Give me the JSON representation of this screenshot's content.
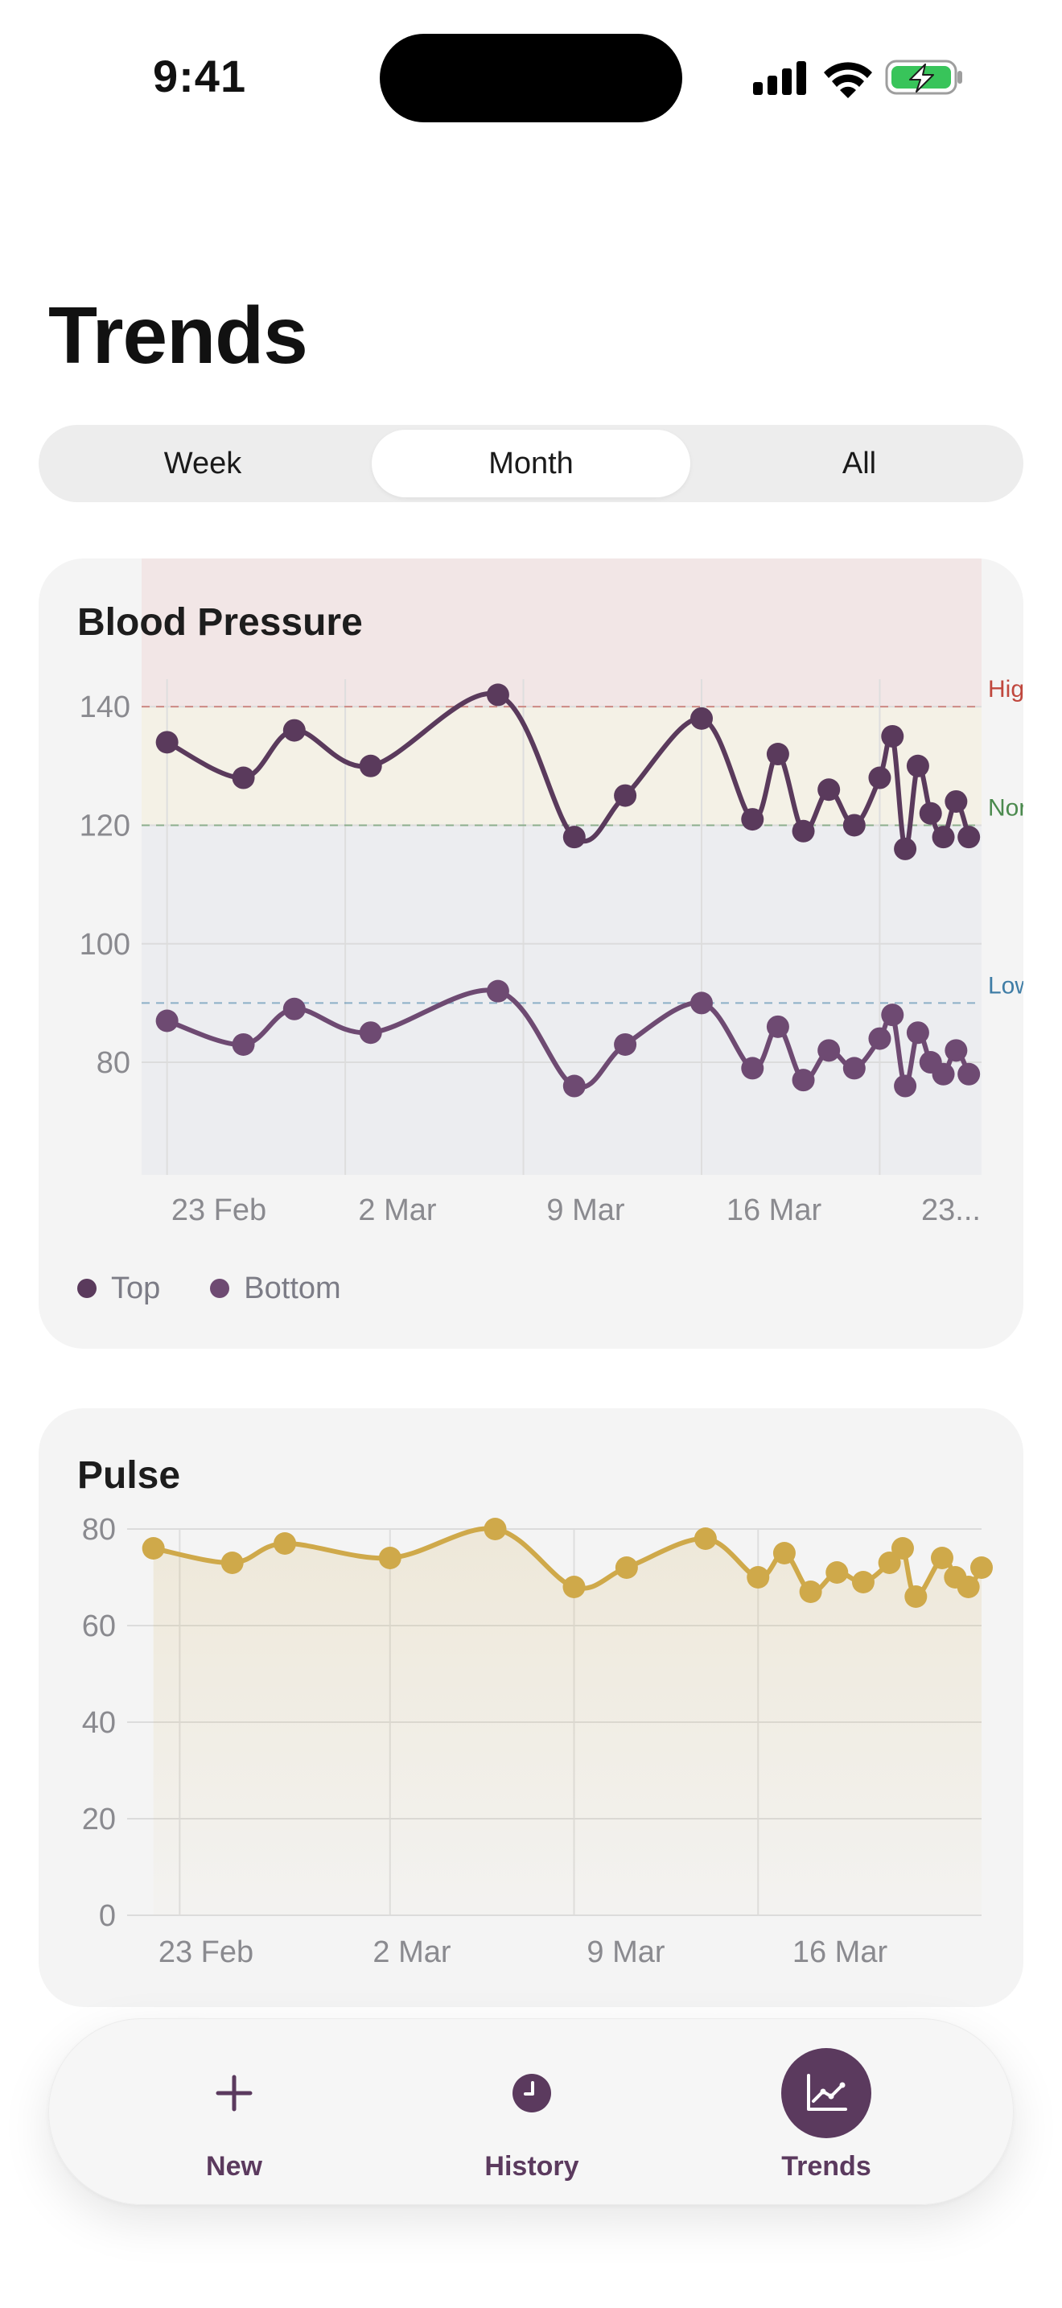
{
  "status_bar": {
    "time": "9:41"
  },
  "page": {
    "title": "Trends"
  },
  "segmented": {
    "options": [
      {
        "label": "Week",
        "selected": false
      },
      {
        "label": "Month",
        "selected": true
      },
      {
        "label": "All",
        "selected": false
      }
    ]
  },
  "colors": {
    "accent": "#5b3a5e",
    "systolic": "#5a3a5c",
    "diastolic": "#6e4a72",
    "pulse": "#cfa94a",
    "high_zone": "#f2e6e6",
    "normal_zone": "#f4f1e6",
    "low_zone": "#ecedf0",
    "high_label": "#c0473d",
    "normal_label": "#4b8a4e",
    "low_label": "#3f7da6"
  },
  "blood_pressure": {
    "title": "Blood Pressure",
    "legend": [
      {
        "label": "Top",
        "icon": "dot"
      },
      {
        "label": "Bottom",
        "icon": "dot"
      }
    ],
    "zones": [
      {
        "label": "High",
        "value": 140
      },
      {
        "label": "Normal",
        "value": 120
      },
      {
        "label": "Low",
        "value": 90
      }
    ]
  },
  "pulse": {
    "title": "Pulse"
  },
  "tabbar": {
    "items": [
      {
        "label": "New",
        "icon": "plus-icon",
        "active": false
      },
      {
        "label": "History",
        "icon": "clock-icon",
        "active": false
      },
      {
        "label": "Trends",
        "icon": "trend-chart-icon",
        "active": true
      }
    ]
  },
  "chart_data": [
    {
      "type": "line",
      "title": "Blood Pressure",
      "x_ticks": [
        "23 Feb",
        "2 Mar",
        "9 Mar",
        "16 Mar",
        "23..."
      ],
      "y_ticks": [
        80,
        100,
        120,
        140
      ],
      "ylim": [
        61,
        165
      ],
      "grid": true,
      "legend_position": "bottom-left",
      "reference_lines": [
        {
          "label": "High",
          "value": 140
        },
        {
          "label": "Normal",
          "value": 120
        },
        {
          "label": "Low",
          "value": 90
        }
      ],
      "x": [
        "2024-02-19",
        "2024-02-22",
        "2024-02-24",
        "2024-02-27",
        "2024-03-03",
        "2024-03-06",
        "2024-03-08",
        "2024-03-11",
        "2024-03-13",
        "2024-03-14",
        "2024-03-15",
        "2024-03-16",
        "2024-03-17",
        "2024-03-18",
        "2024-03-18T12:00",
        "2024-03-19",
        "2024-03-19T12:00",
        "2024-03-20",
        "2024-03-20T12:00",
        "2024-03-21",
        "2024-03-21T12:00"
      ],
      "series": [
        {
          "name": "Top",
          "values": [
            134,
            128,
            136,
            130,
            142,
            118,
            125,
            138,
            121,
            132,
            119,
            126,
            120,
            128,
            135,
            116,
            130,
            122,
            118,
            124,
            118
          ]
        },
        {
          "name": "Bottom",
          "values": [
            87,
            83,
            89,
            85,
            92,
            76,
            83,
            90,
            79,
            86,
            77,
            82,
            79,
            84,
            88,
            76,
            85,
            80,
            78,
            82,
            78
          ]
        }
      ]
    },
    {
      "type": "area",
      "title": "Pulse",
      "x_ticks": [
        "23 Feb",
        "2 Mar",
        "9 Mar",
        "16 Mar"
      ],
      "y_ticks": [
        0,
        20,
        40,
        60,
        80
      ],
      "ylim": [
        0,
        80
      ],
      "grid": true,
      "x": [
        "2024-02-22",
        "2024-02-25",
        "2024-02-27",
        "2024-03-02",
        "2024-03-06",
        "2024-03-09",
        "2024-03-11",
        "2024-03-14",
        "2024-03-16",
        "2024-03-17",
        "2024-03-18",
        "2024-03-19",
        "2024-03-20",
        "2024-03-21",
        "2024-03-21T12:00",
        "2024-03-22",
        "2024-03-23",
        "2024-03-23T12:00",
        "2024-03-24",
        "2024-03-24T12:00"
      ],
      "series": [
        {
          "name": "",
          "values": [
            76,
            73,
            77,
            74,
            80,
            68,
            72,
            78,
            70,
            75,
            67,
            71,
            69,
            73,
            76,
            66,
            74,
            70,
            68,
            72
          ]
        }
      ]
    }
  ]
}
